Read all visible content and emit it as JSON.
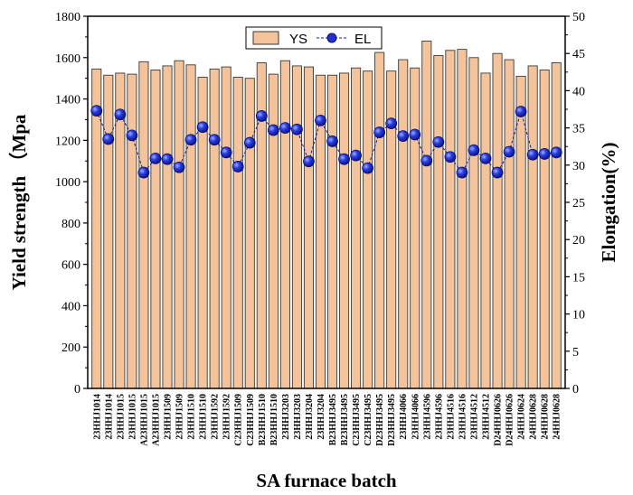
{
  "chart_data": {
    "type": "bar+line",
    "xlabel": "SA furnace batch",
    "ylabel_left": "Yield strength （Mpa",
    "ylabel_right": "Elongation(%)",
    "ylim_left": [
      0,
      1800
    ],
    "ylim_right": [
      0,
      50
    ],
    "yticks_left": [
      0,
      200,
      400,
      600,
      800,
      1000,
      1200,
      1400,
      1600,
      1800
    ],
    "yticks_right": [
      0,
      5,
      10,
      15,
      20,
      25,
      30,
      35,
      40,
      45,
      50
    ],
    "legend": {
      "placement": "top-center",
      "entries": [
        "YS",
        "EL"
      ]
    },
    "colors": {
      "bar_fill": "#f5c39a",
      "bar_stroke": "#3a3a3a",
      "line": "#1a1a9a",
      "marker": "#1f2fd8"
    },
    "categories": [
      "23HHJ1014",
      "23HHJ1014",
      "23HHJ1015",
      "23HHJ1015",
      "A23HHJ1015",
      "A23HHJ1015",
      "23HHJ1509",
      "23HHJ1509",
      "23HHJ1510",
      "23HHJ1510",
      "23HHJ1592",
      "23HHJ1592",
      "C23HHJ1509",
      "C23HHJ1509",
      "B23HHJ1510",
      "B23HHJ1510",
      "23HHJ3203",
      "23HHJ3203",
      "23HHJ3204",
      "23HHJ3204",
      "B23HHJ3495",
      "B23HHJ3495",
      "C23HHJ3495",
      "C23HHJ3495",
      "D23HHJ3495",
      "D23HHJ3495",
      "23HHJ4066",
      "23HHJ4066",
      "23HHJ4596",
      "23HHJ4596",
      "23HHJ4516",
      "23HHJ4516",
      "23HHJ4512",
      "23HHJ4512",
      "D24HHJ0626",
      "D24HHJ0626",
      "24HHJ0624",
      "24HHJ0628",
      "24HHJ0628",
      "24HHJ0628"
    ],
    "series": [
      {
        "name": "YS",
        "type": "bar",
        "axis": "left",
        "values": [
          1545,
          1515,
          1525,
          1520,
          1580,
          1540,
          1560,
          1585,
          1565,
          1505,
          1545,
          1555,
          1505,
          1500,
          1575,
          1520,
          1585,
          1560,
          1555,
          1515,
          1515,
          1525,
          1550,
          1535,
          1625,
          1535,
          1590,
          1550,
          1680,
          1610,
          1635,
          1640,
          1600,
          1525,
          1620,
          1590,
          1510,
          1560,
          1540,
          1575
        ]
      },
      {
        "name": "EL",
        "type": "line",
        "axis": "right",
        "values": [
          37.3,
          33.5,
          36.8,
          34.0,
          29.0,
          30.9,
          30.8,
          29.7,
          33.4,
          35.1,
          33.4,
          31.7,
          29.8,
          33.0,
          36.6,
          34.7,
          35.0,
          34.8,
          30.5,
          36.0,
          33.2,
          30.8,
          31.3,
          29.6,
          34.4,
          35.6,
          33.9,
          34.1,
          30.6,
          33.1,
          31.1,
          29.0,
          32.0,
          30.9,
          29.0,
          31.8,
          37.2,
          31.4,
          31.5,
          31.7
        ]
      }
    ]
  }
}
